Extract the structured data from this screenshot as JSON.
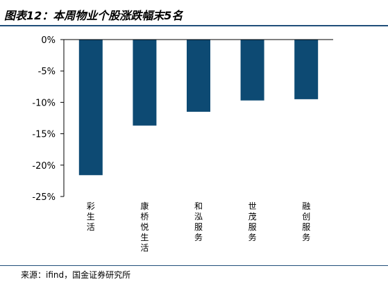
{
  "header": {
    "title": "图表12：本周物业个股涨跌幅末5名"
  },
  "footer": {
    "source": "来源：ifind，国金证券研究所"
  },
  "colors": {
    "bar": "#0d4a73",
    "rule": "#1f4e79"
  },
  "chart_data": {
    "type": "bar",
    "title": "本周物业个股涨跌幅末5名",
    "categories": [
      "彩生活",
      "康桥悦生活",
      "和泓服务",
      "世茂服务",
      "融创服务"
    ],
    "values": [
      -21.6,
      -13.7,
      -11.5,
      -9.7,
      -9.5
    ],
    "ylim": [
      -25,
      0
    ],
    "yticks": [
      0,
      -5,
      -10,
      -15,
      -20,
      -25
    ],
    "ytick_labels": [
      "0%",
      "-5%",
      "-10%",
      "-15%",
      "-20%",
      "-25%"
    ],
    "xlabel": "",
    "ylabel": "",
    "grid": false,
    "legend": "none"
  }
}
